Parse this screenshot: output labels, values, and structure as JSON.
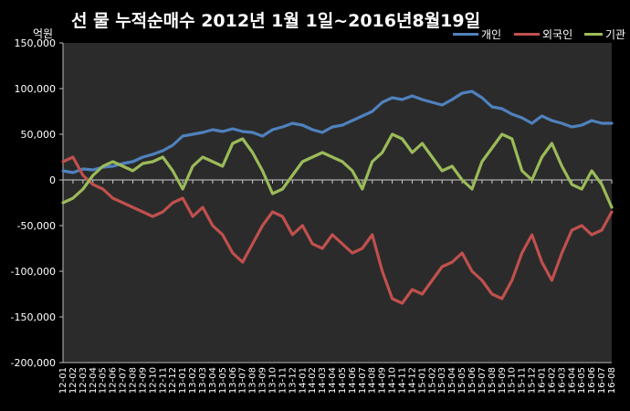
{
  "header": {
    "title": "선 물 누적순매수 2012년 1월 1일~2016년8월19일",
    "unit_label": "억원"
  },
  "legend": [
    {
      "name": "개인",
      "color": "#4f81bd"
    },
    {
      "name": "외국인",
      "color": "#c0504d"
    },
    {
      "name": "기관",
      "color": "#9bbb59"
    }
  ],
  "chart_data": {
    "type": "line",
    "title": "선 물 누적순매수 2012년 1월 1일~2016년8월19일",
    "ylabel": "억원",
    "xlabel": "",
    "ylim": [
      -200000,
      150000
    ],
    "yticks": [
      150000,
      100000,
      50000,
      0,
      -50000,
      -100000,
      -150000,
      -200000
    ],
    "ytick_labels": [
      "150,000",
      "100,000",
      "50,000",
      "0",
      "-50,000",
      "-100,000",
      "-150,000",
      "-200,000"
    ],
    "categories": [
      "12-01",
      "12-02",
      "12-03",
      "12-04",
      "12-05",
      "12-06",
      "12-07",
      "12-08",
      "12-09",
      "12-10",
      "12-11",
      "12-12",
      "13-01",
      "13-02",
      "13-03",
      "13-04",
      "13-05",
      "13-06",
      "13-07",
      "13-08",
      "13-09",
      "13-10",
      "13-11",
      "13-12",
      "14-01",
      "14-02",
      "14-03",
      "14-04",
      "14-05",
      "14-06",
      "14-07",
      "14-08",
      "14-09",
      "14-10",
      "14-11",
      "14-12",
      "15-01",
      "15-02",
      "15-03",
      "15-04",
      "15-05",
      "15-06",
      "15-07",
      "15-08",
      "15-09",
      "15-10",
      "15-11",
      "15-12",
      "16-01",
      "16-02",
      "16-03",
      "16-04",
      "16-05",
      "16-06",
      "16-07",
      "16-08"
    ],
    "grid": true,
    "legend_position": "top-right",
    "series": [
      {
        "name": "개인",
        "color": "#4f81bd",
        "values": [
          10000,
          8000,
          12000,
          11000,
          14000,
          15000,
          18000,
          20000,
          25000,
          28000,
          32000,
          38000,
          48000,
          50000,
          52000,
          55000,
          53000,
          56000,
          53000,
          52000,
          48000,
          55000,
          58000,
          62000,
          60000,
          55000,
          52000,
          58000,
          60000,
          65000,
          70000,
          75000,
          85000,
          90000,
          88000,
          92000,
          88000,
          85000,
          82000,
          88000,
          95000,
          97000,
          90000,
          80000,
          78000,
          72000,
          68000,
          62000,
          70000,
          65000,
          62000,
          58000,
          60000,
          65000,
          62000,
          62000
        ]
      },
      {
        "name": "외국인",
        "color": "#c0504d",
        "values": [
          20000,
          25000,
          5000,
          -5000,
          -10000,
          -20000,
          -25000,
          -30000,
          -35000,
          -40000,
          -35000,
          -25000,
          -20000,
          -40000,
          -30000,
          -50000,
          -60000,
          -80000,
          -90000,
          -70000,
          -50000,
          -35000,
          -40000,
          -60000,
          -50000,
          -70000,
          -75000,
          -60000,
          -70000,
          -80000,
          -75000,
          -60000,
          -100000,
          -130000,
          -135000,
          -120000,
          -125000,
          -110000,
          -95000,
          -90000,
          -80000,
          -100000,
          -110000,
          -125000,
          -130000,
          -110000,
          -80000,
          -60000,
          -90000,
          -110000,
          -80000,
          -55000,
          -50000,
          -60000,
          -55000,
          -35000
        ]
      },
      {
        "name": "기관",
        "color": "#9bbb59",
        "values": [
          -25000,
          -20000,
          -10000,
          5000,
          15000,
          20000,
          15000,
          10000,
          18000,
          20000,
          25000,
          10000,
          -10000,
          15000,
          25000,
          20000,
          15000,
          40000,
          45000,
          30000,
          10000,
          -15000,
          -10000,
          5000,
          20000,
          25000,
          30000,
          25000,
          20000,
          10000,
          -10000,
          20000,
          30000,
          50000,
          45000,
          30000,
          40000,
          25000,
          10000,
          15000,
          0,
          -10000,
          20000,
          35000,
          50000,
          45000,
          10000,
          0,
          25000,
          40000,
          15000,
          -5000,
          -10000,
          10000,
          -5000,
          -30000
        ]
      }
    ]
  }
}
